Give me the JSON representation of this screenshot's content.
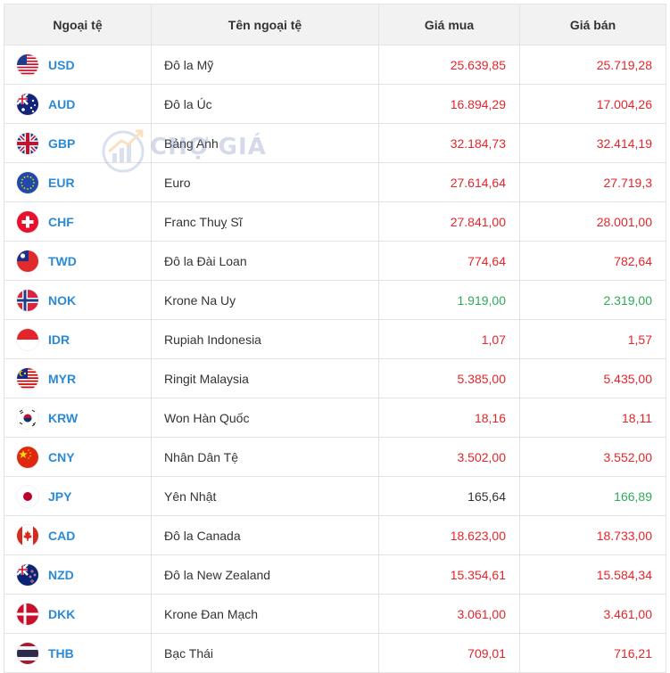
{
  "table": {
    "headers": {
      "code": "Ngoại tệ",
      "name": "Tên ngoại tệ",
      "buy": "Giá mua",
      "sell": "Giá bán"
    },
    "rows": [
      {
        "code": "USD",
        "name": "Đô la Mỹ",
        "buy": "25.639,85",
        "sell": "25.719,28",
        "buy_color": "red",
        "sell_color": "red",
        "flag_icon": "us-flag-icon"
      },
      {
        "code": "AUD",
        "name": "Đô la Úc",
        "buy": "16.894,29",
        "sell": "17.004,26",
        "buy_color": "red",
        "sell_color": "red",
        "flag_icon": "au-flag-icon"
      },
      {
        "code": "GBP",
        "name": "Bảng Anh",
        "buy": "32.184,73",
        "sell": "32.414,19",
        "buy_color": "red",
        "sell_color": "red",
        "flag_icon": "gb-flag-icon"
      },
      {
        "code": "EUR",
        "name": "Euro",
        "buy": "27.614,64",
        "sell": "27.719,3",
        "buy_color": "red",
        "sell_color": "red",
        "flag_icon": "eu-flag-icon"
      },
      {
        "code": "CHF",
        "name": "Franc Thuỵ Sĩ",
        "buy": "27.841,00",
        "sell": "28.001,00",
        "buy_color": "red",
        "sell_color": "red",
        "flag_icon": "ch-flag-icon"
      },
      {
        "code": "TWD",
        "name": "Đô la Đài Loan",
        "buy": "774,64",
        "sell": "782,64",
        "buy_color": "red",
        "sell_color": "red",
        "flag_icon": "tw-flag-icon"
      },
      {
        "code": "NOK",
        "name": "Krone Na Uy",
        "buy": "1.919,00",
        "sell": "2.319,00",
        "buy_color": "green",
        "sell_color": "green",
        "flag_icon": "no-flag-icon"
      },
      {
        "code": "IDR",
        "name": "Rupiah Indonesia",
        "buy": "1,07",
        "sell": "1,57",
        "buy_color": "red",
        "sell_color": "red",
        "flag_icon": "id-flag-icon"
      },
      {
        "code": "MYR",
        "name": "Ringit Malaysia",
        "buy": "5.385,00",
        "sell": "5.435,00",
        "buy_color": "red",
        "sell_color": "red",
        "flag_icon": "my-flag-icon"
      },
      {
        "code": "KRW",
        "name": "Won Hàn Quốc",
        "buy": "18,16",
        "sell": "18,11",
        "buy_color": "red",
        "sell_color": "red",
        "flag_icon": "kr-flag-icon"
      },
      {
        "code": "CNY",
        "name": "Nhân Dân Tệ",
        "buy": "3.502,00",
        "sell": "3.552,00",
        "buy_color": "red",
        "sell_color": "red",
        "flag_icon": "cn-flag-icon"
      },
      {
        "code": "JPY",
        "name": "Yên Nhật",
        "buy": "165,64",
        "sell": "166,89",
        "buy_color": "dark",
        "sell_color": "green",
        "flag_icon": "jp-flag-icon"
      },
      {
        "code": "CAD",
        "name": "Đô la Canada",
        "buy": "18.623,00",
        "sell": "18.733,00",
        "buy_color": "red",
        "sell_color": "red",
        "flag_icon": "ca-flag-icon"
      },
      {
        "code": "NZD",
        "name": "Đô la New Zealand",
        "buy": "15.354,61",
        "sell": "15.584,34",
        "buy_color": "red",
        "sell_color": "red",
        "flag_icon": "nz-flag-icon"
      },
      {
        "code": "DKK",
        "name": "Krone Đan Mạch",
        "buy": "3.061,00",
        "sell": "3.461,00",
        "buy_color": "red",
        "sell_color": "red",
        "flag_icon": "dk-flag-icon"
      },
      {
        "code": "THB",
        "name": "Bạc Thái",
        "buy": "709,01",
        "sell": "716,21",
        "buy_color": "red",
        "sell_color": "red",
        "flag_icon": "th-flag-icon"
      }
    ]
  },
  "watermark": {
    "text": "CHỢ GIÁ",
    "icon": "cho-gia-logo-icon"
  },
  "colors": {
    "red": "#e3262b",
    "green": "#2eaa56",
    "dark": "#333333",
    "code_blue": "#2a8ad6",
    "header_bg": "#f2f2f2",
    "border": "#e3e3e3"
  }
}
